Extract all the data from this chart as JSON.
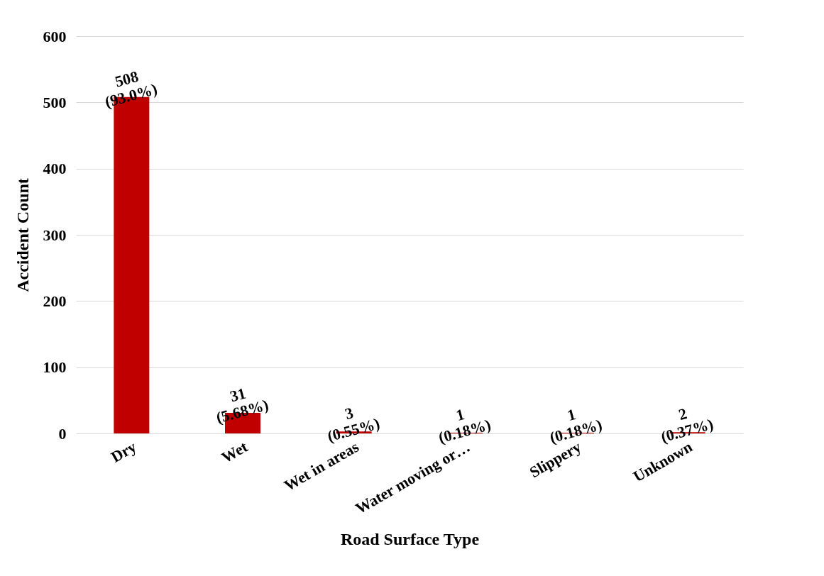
{
  "chart_data": {
    "type": "bar",
    "xlabel": "Road Surface Type",
    "ylabel": "Accident Count",
    "categories": [
      "Dry",
      "Wet",
      "Wet in areas",
      "Water moving or…",
      "Slippery",
      "Unknown"
    ],
    "values": [
      508,
      31,
      3,
      1,
      1,
      2
    ],
    "color": "#c00000",
    "value_labels": [
      "508\n(93.0%)",
      "31\n(5.68%)",
      "3\n(0.55%)",
      "1\n(0.18%)",
      "1\n(0.18%)",
      "2\n(0.37%)"
    ],
    "ylim": [
      0,
      600
    ],
    "yticks": [
      0,
      100,
      200,
      300,
      400,
      500,
      600
    ],
    "grid": "y"
  }
}
